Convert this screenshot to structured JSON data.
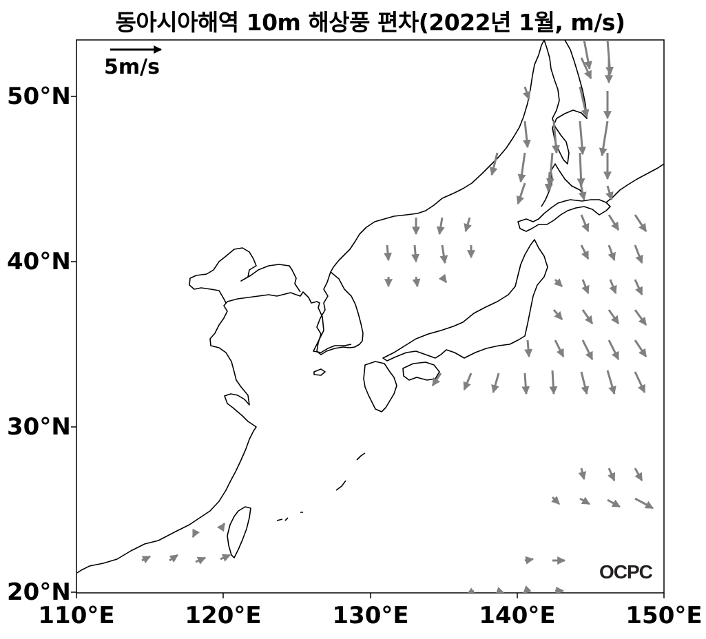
{
  "title": "동아시아해역 10m 해상풍 편차(2022년 1월, m/s)",
  "logo": "OCPC",
  "reference_arrow": {
    "label": "5m/s",
    "speed_ms": 5
  },
  "lat_labels": [
    "20°N",
    "30°N",
    "40°N",
    "50°N"
  ],
  "lon_labels": [
    "110°E",
    "120°E",
    "130°E",
    "140°E",
    "150°E"
  ],
  "colors": {
    "vector": "#808080",
    "coast": "#000000",
    "reference": "#000000"
  }
}
